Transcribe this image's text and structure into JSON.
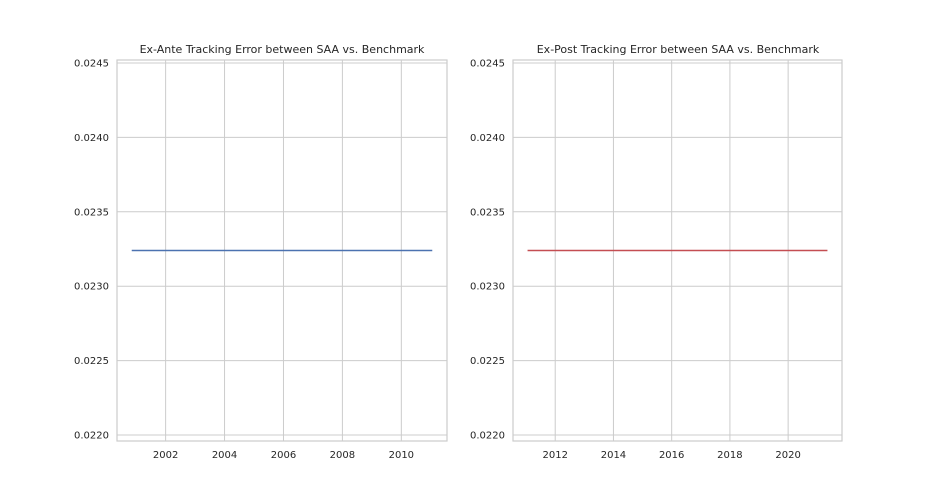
{
  "chart_data": [
    {
      "type": "line",
      "title": "Ex-Ante Tracking Error between SAA vs. Benchmark",
      "xlabel": "",
      "ylabel": "",
      "x_ticks": [
        "2002",
        "2004",
        "2006",
        "2008",
        "2010"
      ],
      "y_ticks": [
        "0.0220",
        "0.0225",
        "0.0230",
        "0.0235",
        "0.0240",
        "0.0245"
      ],
      "xlim": [
        2000.35,
        2011.55
      ],
      "ylim": [
        0.02196,
        0.02452
      ],
      "grid": true,
      "series": [
        {
          "color": "#4c72b0",
          "x": [
            2000.85,
            2011.05
          ],
          "y": [
            0.02324,
            0.02324
          ]
        }
      ]
    },
    {
      "type": "line",
      "title": "Ex-Post Tracking Error between SAA vs. Benchmark",
      "xlabel": "",
      "ylabel": "",
      "x_ticks": [
        "2012",
        "2014",
        "2016",
        "2018",
        "2020"
      ],
      "y_ticks": [
        "0.0220",
        "0.0225",
        "0.0230",
        "0.0235",
        "0.0240",
        "0.0245"
      ],
      "xlim": [
        2010.55,
        2021.85
      ],
      "ylim": [
        0.02196,
        0.02452
      ],
      "grid": true,
      "series": [
        {
          "color": "#c44e52",
          "x": [
            2011.05,
            2021.35
          ],
          "y": [
            0.02324,
            0.02324
          ]
        }
      ]
    }
  ]
}
